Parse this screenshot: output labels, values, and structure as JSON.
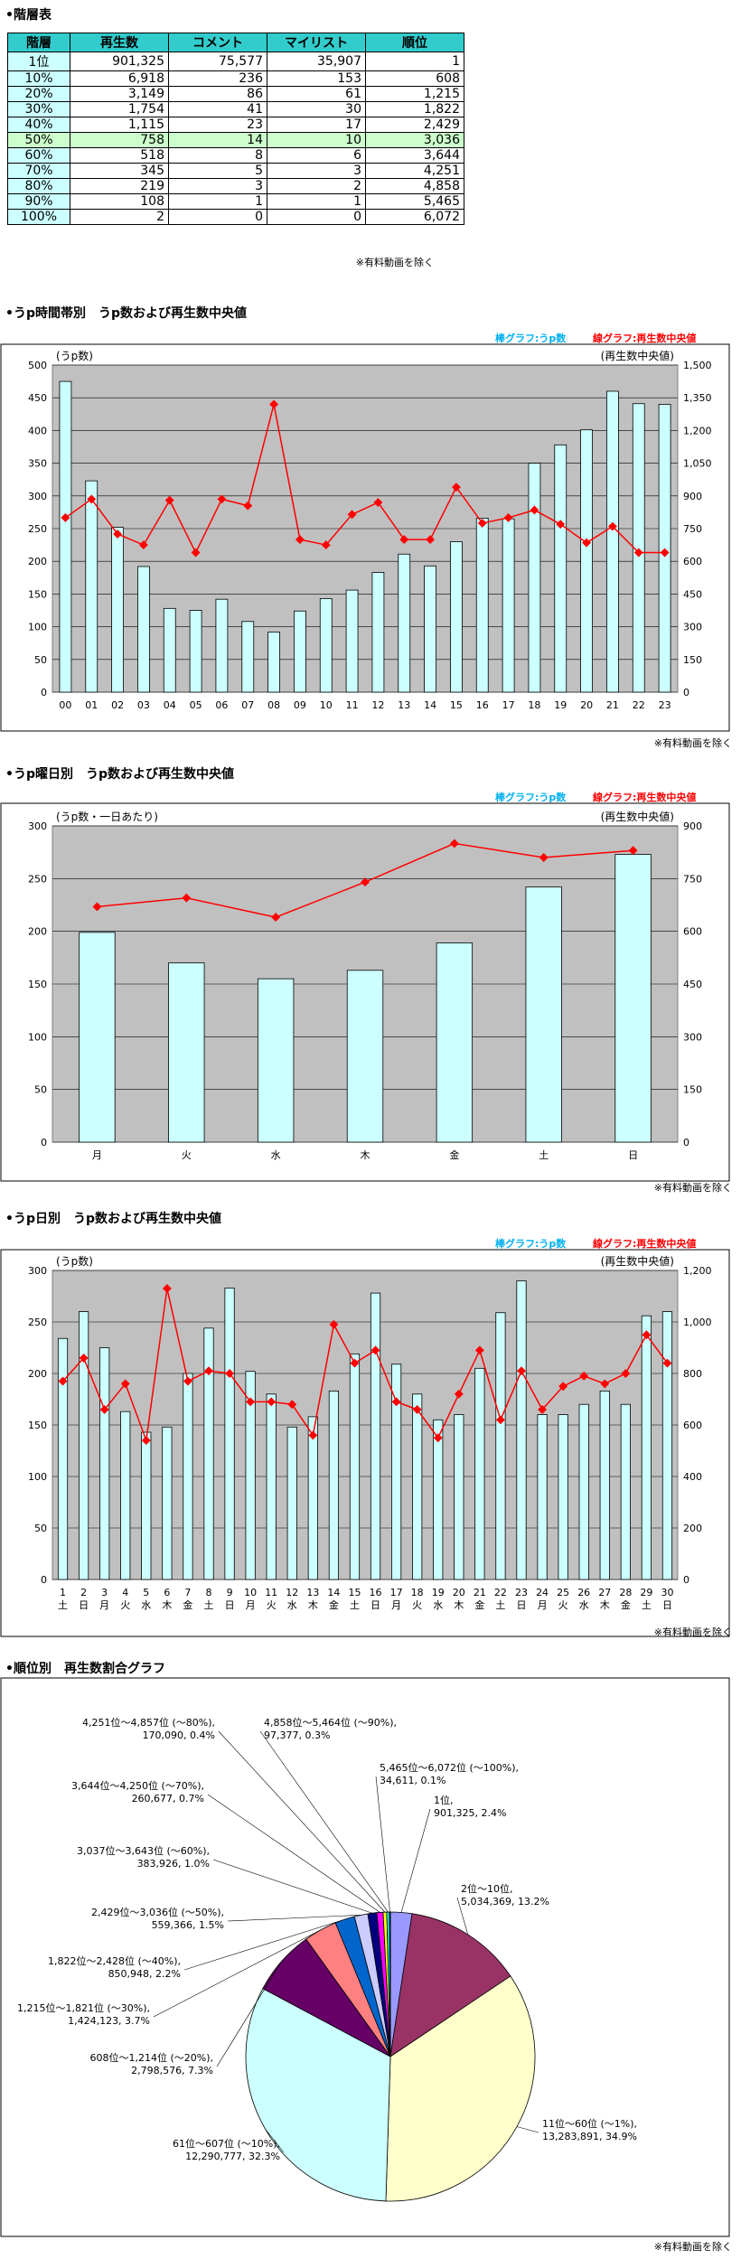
{
  "tier_table": {
    "title": "•階層表",
    "headers": [
      "階層",
      "再生数",
      "コメント",
      "マイリスト",
      "順位"
    ],
    "rows": [
      [
        "1位",
        "901,325",
        "75,577",
        "35,907",
        "1"
      ],
      [
        "10%",
        "6,918",
        "236",
        "153",
        "608"
      ],
      [
        "20%",
        "3,149",
        "86",
        "61",
        "1,215"
      ],
      [
        "30%",
        "1,754",
        "41",
        "30",
        "1,822"
      ],
      [
        "40%",
        "1,115",
        "23",
        "17",
        "2,429"
      ],
      [
        "50%",
        "758",
        "14",
        "10",
        "3,036"
      ],
      [
        "60%",
        "518",
        "8",
        "6",
        "3,644"
      ],
      [
        "70%",
        "345",
        "5",
        "3",
        "4,251"
      ],
      [
        "80%",
        "219",
        "3",
        "2",
        "4,858"
      ],
      [
        "90%",
        "108",
        "1",
        "1",
        "5,465"
      ],
      [
        "100%",
        "2",
        "0",
        "0",
        "6,072"
      ]
    ],
    "highlight_color": "#ccffcc",
    "header_color": "#33cccc",
    "first_col_color": "#ccffff",
    "note": "※有料動画を除く"
  },
  "legend": {
    "bar": "棒グラフ:うp数",
    "line": "線グラフ:再生数中央値"
  },
  "chart_data": [
    {
      "id": "hourly",
      "type": "bar",
      "title": "•うp時間帯別　うp数および再生数中央値",
      "ylabel": "(うp数)",
      "y2label": "(再生数中央値)",
      "categories": [
        "00",
        "01",
        "02",
        "03",
        "04",
        "05",
        "06",
        "07",
        "08",
        "09",
        "10",
        "11",
        "12",
        "13",
        "14",
        "15",
        "16",
        "17",
        "18",
        "19",
        "20",
        "21",
        "22",
        "23"
      ],
      "series": [
        {
          "name": "うp数",
          "type": "bar",
          "axis": "left",
          "color": "#ccffff",
          "values": [
            475,
            323,
            252,
            192,
            128,
            125,
            142,
            108,
            92,
            124,
            143,
            156,
            183,
            211,
            193,
            230,
            266,
            265,
            350,
            378,
            401,
            460,
            441,
            440
          ]
        },
        {
          "name": "再生数中央値",
          "type": "line",
          "axis": "right",
          "color": "#ff0000",
          "values": [
            800,
            885,
            725,
            675,
            880,
            640,
            885,
            855,
            1320,
            700,
            675,
            815,
            870,
            700,
            700,
            940,
            775,
            800,
            835,
            770,
            685,
            760,
            640,
            640
          ]
        }
      ],
      "ylim": [
        0,
        500
      ],
      "y2lim": [
        0,
        1500
      ],
      "yticks": [
        "0",
        "50",
        "100",
        "150",
        "200",
        "250",
        "300",
        "350",
        "400",
        "450",
        "500"
      ],
      "y2ticks": [
        "0",
        "150",
        "300",
        "450",
        "600",
        "750",
        "900",
        "1,050",
        "1,200",
        "1,350",
        "1,500"
      ],
      "note": "※有料動画を除く"
    },
    {
      "id": "weekday",
      "type": "bar",
      "title": "•うp曜日別　うp数および再生数中央値",
      "ylabel": "(うp数・一日あたり)",
      "y2label": "(再生数中央値)",
      "categories": [
        "月",
        "火",
        "水",
        "木",
        "金",
        "土",
        "日"
      ],
      "series": [
        {
          "name": "うp数",
          "type": "bar",
          "axis": "left",
          "color": "#ccffff",
          "values": [
            199,
            170,
            155,
            163,
            189,
            242,
            273
          ]
        },
        {
          "name": "再生数中央値",
          "type": "line",
          "axis": "right",
          "color": "#ff0000",
          "values": [
            670,
            695,
            640,
            740,
            850,
            810,
            830
          ]
        }
      ],
      "ylim": [
        0,
        300
      ],
      "y2lim": [
        0,
        900
      ],
      "yticks": [
        "0",
        "50",
        "100",
        "150",
        "200",
        "250",
        "300"
      ],
      "y2ticks": [
        "0",
        "150",
        "300",
        "450",
        "600",
        "750",
        "900"
      ],
      "note": "※有料動画を除く"
    },
    {
      "id": "daily",
      "type": "bar",
      "title": "•うp日別　うp数および再生数中央値",
      "ylabel": "(うp数)",
      "y2label": "(再生数中央値)",
      "categories": [
        "1",
        "2",
        "3",
        "4",
        "5",
        "6",
        "7",
        "8",
        "9",
        "10",
        "11",
        "12",
        "13",
        "14",
        "15",
        "16",
        "17",
        "18",
        "19",
        "20",
        "21",
        "22",
        "23",
        "24",
        "25",
        "26",
        "27",
        "28",
        "29",
        "30"
      ],
      "weekdays": [
        "土",
        "日",
        "月",
        "火",
        "水",
        "木",
        "金",
        "土",
        "日",
        "月",
        "火",
        "水",
        "木",
        "金",
        "土",
        "日",
        "月",
        "火",
        "水",
        "木",
        "金",
        "土",
        "日",
        "月",
        "火",
        "水",
        "木",
        "金",
        "土",
        "日"
      ],
      "series": [
        {
          "name": "うp数",
          "type": "bar",
          "axis": "left",
          "color": "#ccffff",
          "values": [
            234,
            260,
            225,
            163,
            143,
            148,
            200,
            244,
            283,
            202,
            180,
            148,
            158,
            183,
            219,
            278,
            209,
            180,
            155,
            160,
            205,
            259,
            290,
            160,
            160,
            170,
            183,
            170,
            256,
            260
          ]
        },
        {
          "name": "再生数中央値",
          "type": "line",
          "axis": "right",
          "color": "#ff0000",
          "values": [
            770,
            860,
            660,
            760,
            540,
            1130,
            770,
            810,
            800,
            690,
            690,
            680,
            560,
            990,
            840,
            890,
            690,
            660,
            550,
            720,
            890,
            620,
            810,
            660,
            750,
            790,
            760,
            800,
            950,
            840
          ]
        }
      ],
      "ylim": [
        0,
        300
      ],
      "y2lim": [
        0,
        1200
      ],
      "yticks": [
        "0",
        "50",
        "100",
        "150",
        "200",
        "250",
        "300"
      ],
      "y2ticks": [
        "0",
        "200",
        "400",
        "600",
        "800",
        "1,000",
        "1,200"
      ],
      "note": "※有料動画を除く"
    },
    {
      "id": "rank_pie",
      "type": "pie",
      "title": "•順位別　再生数割合グラフ",
      "slices": [
        {
          "label": "1位, 901,325, 2.4%",
          "value": 2.4,
          "color": "#9999ff"
        },
        {
          "label": "2位〜10位, 5,034,369, 13.2%",
          "value": 13.2,
          "color": "#993366"
        },
        {
          "label": "11位〜60位 (〜1%), 13,283,891, 34.9%",
          "value": 34.9,
          "color": "#ffffcc"
        },
        {
          "label": "61位〜607位 (〜10%), 12,290,777, 32.3%",
          "value": 32.3,
          "color": "#ccffff"
        },
        {
          "label": "608位〜1,214位 (〜20%), 2,798,576, 7.3%",
          "value": 7.3,
          "color": "#660066"
        },
        {
          "label": "1,215位〜1,821位 (〜30%), 1,424,123, 3.7%",
          "value": 3.7,
          "color": "#ff8080"
        },
        {
          "label": "1,822位〜2,428位 (〜40%), 850,948, 2.2%",
          "value": 2.2,
          "color": "#0066cc"
        },
        {
          "label": "2,429位〜3,036位 (〜50%), 559,366, 1.5%",
          "value": 1.5,
          "color": "#ccccff"
        },
        {
          "label": "3,037位〜3,643位 (〜60%), 383,926, 1.0%",
          "value": 1.0,
          "color": "#000080"
        },
        {
          "label": "3,644位〜4,250位 (〜70%), 260,677, 0.7%",
          "value": 0.7,
          "color": "#ff00ff"
        },
        {
          "label": "4,251位〜4,857位 (〜80%), 170,090, 0.4%",
          "value": 0.4,
          "color": "#ffff00"
        },
        {
          "label": "4,858位〜5,464位 (〜90%), 97,377, 0.3%",
          "value": 0.3,
          "color": "#00ffff"
        },
        {
          "label": "5,465位〜6,072位 (〜100%), 34,611, 0.1%",
          "value": 0.1,
          "color": "#800080"
        }
      ],
      "note": "※有料動画を除く"
    }
  ]
}
